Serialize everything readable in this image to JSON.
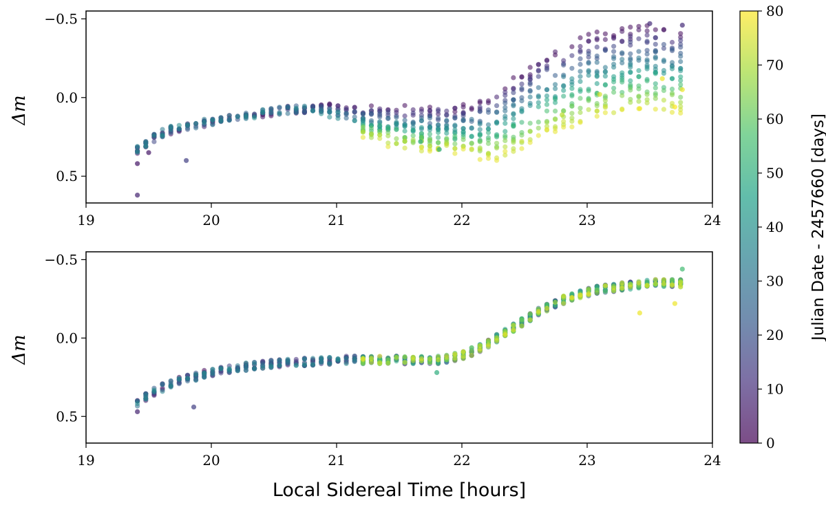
{
  "chart_data": {
    "type": "scatter",
    "shared": {
      "xlabel": "Local Sidereal Time [hours]",
      "xlim": [
        19,
        24
      ],
      "xticks": [
        "19",
        "20",
        "21",
        "22",
        "23",
        "24"
      ],
      "ylabel": "Δm",
      "ylim": [
        0.67,
        -0.55
      ],
      "yticks": [
        "−0.5",
        "0.0",
        "0.5"
      ],
      "ytick_values": [
        -0.5,
        0.0,
        0.5
      ]
    },
    "colorbar": {
      "label": "Julian Date - 2457660 [days]",
      "range": [
        0,
        80
      ],
      "ticks": [
        "0",
        "10",
        "20",
        "30",
        "40",
        "50",
        "60",
        "70",
        "80"
      ],
      "tick_values": [
        0,
        10,
        20,
        30,
        40,
        50,
        60,
        70,
        80
      ],
      "colormap": [
        "#440154",
        "#46327e",
        "#365c8d",
        "#277f8e",
        "#1fa187",
        "#4ac16d",
        "#a0da39",
        "#fde725"
      ],
      "alpha": 0.55
    },
    "panels": [
      {
        "name": "top",
        "description_sample_points": [
          {
            "x": 19.41,
            "y": 0.62,
            "d": 8
          },
          {
            "x": 19.41,
            "y": 0.42,
            "d": 5
          },
          {
            "x": 19.5,
            "y": 0.35,
            "d": 5
          },
          {
            "x": 19.8,
            "y": 0.4,
            "d": 15
          },
          {
            "x": 21.67,
            "y": 0.28,
            "d": 50
          },
          {
            "x": 21.82,
            "y": 0.33,
            "d": 50
          },
          {
            "x": 22.8,
            "y": 0.11,
            "d": 72
          },
          {
            "x": 23.1,
            "y": -0.02,
            "d": 75
          },
          {
            "x": 23.42,
            "y": 0.07,
            "d": 78
          },
          {
            "x": 23.6,
            "y": -0.12,
            "d": 78
          },
          {
            "x": 23.7,
            "y": 0.06,
            "d": 80
          },
          {
            "x": 23.76,
            "y": -0.05,
            "d": 78
          },
          {
            "x": 23.5,
            "y": -0.47,
            "d": 10
          },
          {
            "x": 23.76,
            "y": -0.46,
            "d": 10
          }
        ],
        "trend": {
          "x": [
            19.41,
            19.5,
            19.6,
            19.7,
            19.8,
            19.9,
            20.0,
            20.2,
            20.4,
            20.6,
            20.8,
            21.0,
            21.2,
            21.4,
            21.6,
            21.8,
            21.9,
            22.0,
            22.1,
            22.2,
            22.3,
            22.4,
            22.5,
            22.6,
            22.7,
            22.8,
            22.9,
            23.0,
            23.1,
            23.2,
            23.3,
            23.4,
            23.5,
            23.6,
            23.7,
            23.76
          ],
          "y": [
            0.33,
            0.28,
            0.23,
            0.2,
            0.18,
            0.17,
            0.15,
            0.12,
            0.1,
            0.08,
            0.07,
            0.06,
            0.06,
            0.06,
            0.06,
            0.06,
            0.06,
            0.06,
            0.04,
            0.0,
            -0.05,
            -0.11,
            -0.17,
            -0.23,
            -0.28,
            -0.33,
            -0.36,
            -0.39,
            -0.41,
            -0.43,
            -0.44,
            -0.45,
            -0.45,
            -0.45,
            -0.44,
            -0.44
          ]
        },
        "drift_per_day": [
          0.0,
          0.0,
          0.0,
          0.0,
          0.0,
          0.0,
          0.0,
          0.0,
          0.0,
          0.0,
          0.0,
          0.0015,
          0.0022,
          0.003,
          0.0034,
          0.0036,
          0.0036,
          0.0036,
          0.0042,
          0.005,
          0.0055,
          0.006,
          0.0062,
          0.0063,
          0.0065,
          0.0068,
          0.0068,
          0.0068,
          0.0068,
          0.0068,
          0.0068,
          0.0068,
          0.0068,
          0.0068,
          0.0068,
          0.0068
        ]
      },
      {
        "name": "bottom",
        "description_sample_points": [
          {
            "x": 19.41,
            "y": 0.47,
            "d": 8
          },
          {
            "x": 19.86,
            "y": 0.44,
            "d": 15
          },
          {
            "x": 21.8,
            "y": 0.22,
            "d": 50
          },
          {
            "x": 23.42,
            "y": -0.16,
            "d": 78
          },
          {
            "x": 23.76,
            "y": -0.44,
            "d": 55
          },
          {
            "x": 23.7,
            "y": -0.22,
            "d": 78
          }
        ],
        "trend": {
          "x": [
            19.41,
            19.5,
            19.6,
            19.7,
            19.8,
            19.9,
            20.0,
            20.2,
            20.4,
            20.6,
            20.8,
            21.0,
            21.2,
            21.4,
            21.6,
            21.8,
            21.9,
            22.0,
            22.1,
            22.2,
            22.3,
            22.4,
            22.5,
            22.6,
            22.7,
            22.8,
            22.9,
            23.0,
            23.1,
            23.2,
            23.3,
            23.4,
            23.5,
            23.6,
            23.7,
            23.76
          ],
          "y": [
            0.42,
            0.36,
            0.32,
            0.28,
            0.26,
            0.24,
            0.22,
            0.19,
            0.17,
            0.16,
            0.15,
            0.14,
            0.14,
            0.14,
            0.14,
            0.14,
            0.13,
            0.11,
            0.08,
            0.04,
            -0.01,
            -0.06,
            -0.11,
            -0.16,
            -0.2,
            -0.24,
            -0.27,
            -0.29,
            -0.31,
            -0.32,
            -0.33,
            -0.34,
            -0.35,
            -0.35,
            -0.35,
            -0.35
          ]
        },
        "drift_per_day": [
          0.0,
          0.0,
          0.0,
          0.0,
          0.0,
          0.0,
          0.0,
          0.0,
          0.0,
          0.0,
          0.0,
          0.0,
          0.0,
          0.0,
          0.0,
          0.0,
          0.0,
          0.0,
          0.0,
          0.0,
          0.0,
          0.0,
          0.0,
          0.0,
          0.0,
          0.0,
          0.0,
          0.0,
          0.0,
          0.0,
          0.0,
          0.0,
          0.0,
          0.0,
          0.0,
          0.0
        ]
      }
    ]
  }
}
